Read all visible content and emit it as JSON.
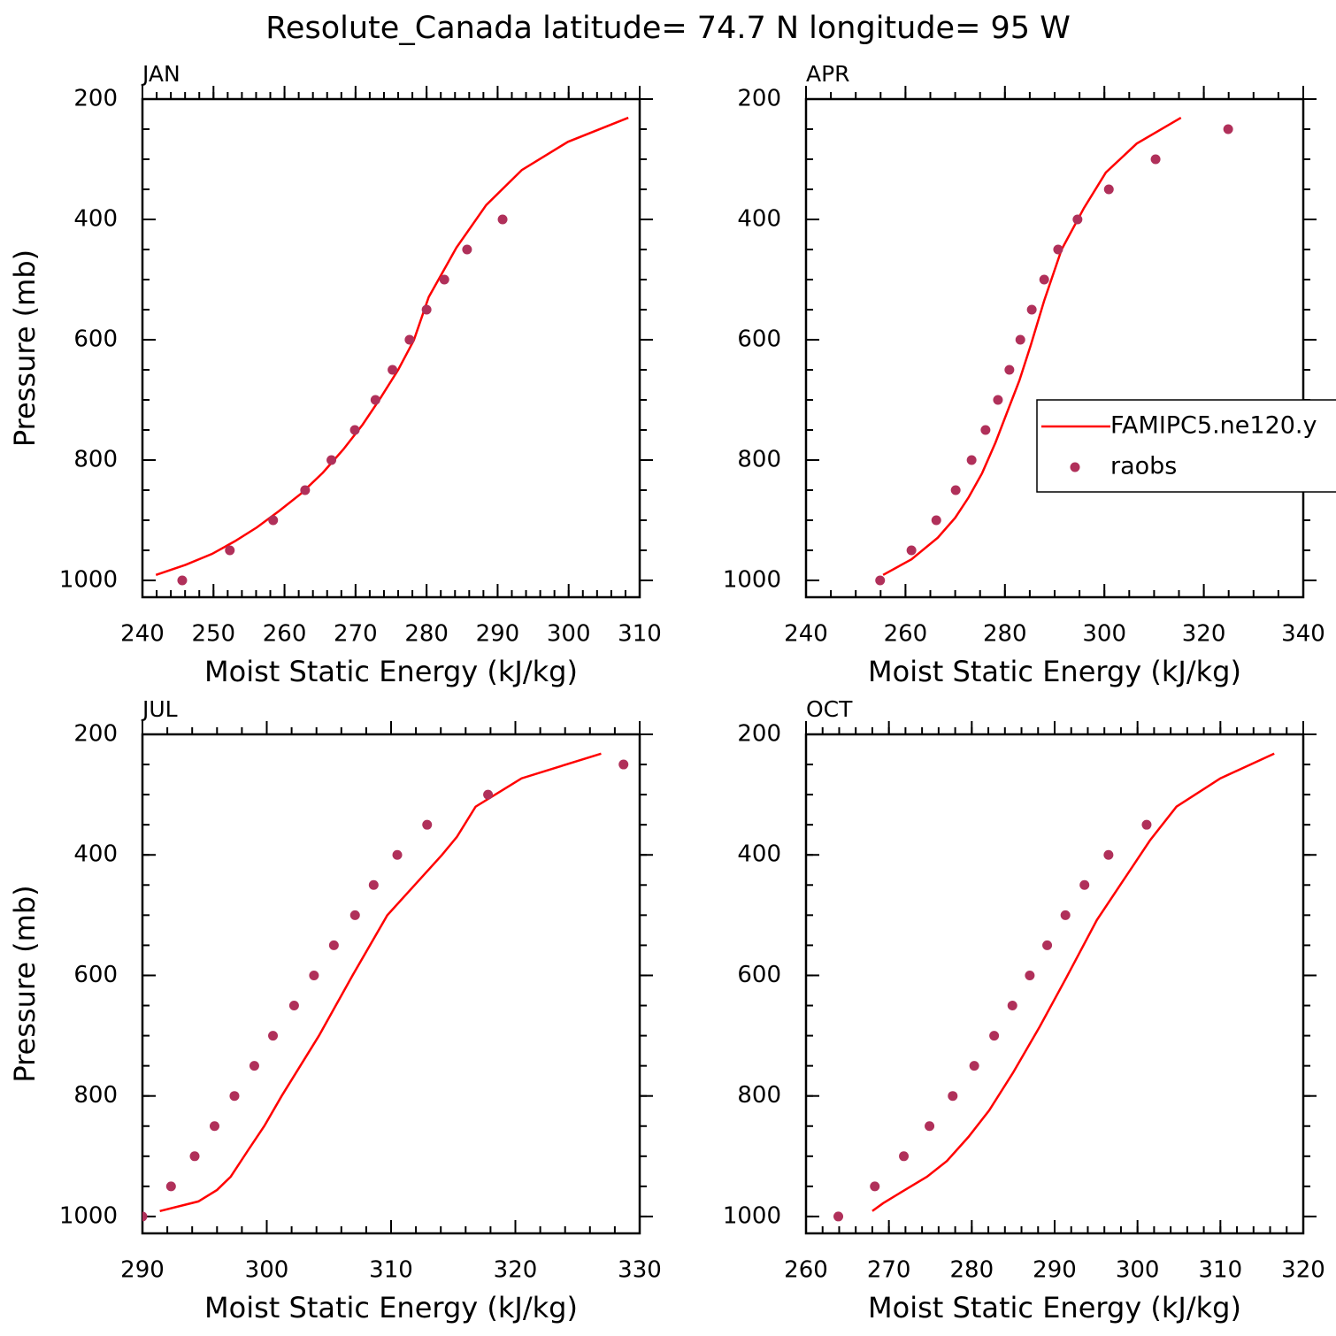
{
  "title": "Resolute_Canada  latitude= 74.7 N longitude= 95 W",
  "chart_data": [
    {
      "type": "line",
      "title": "JAN",
      "xlabel": "Moist Static Energy (kJ/kg)",
      "ylabel": "Pressure (mb)",
      "xlim": [
        240,
        310
      ],
      "xticks": [
        240,
        250,
        260,
        270,
        280,
        290,
        300,
        310
      ],
      "xminor_step": 2,
      "ylim": [
        1028,
        200
      ],
      "yticks": [
        200,
        400,
        600,
        800,
        1000
      ],
      "yminor_step": 50,
      "series": [
        {
          "color": "#ff0000",
          "style": "line",
          "x": [
            241.9,
            246.1,
            249.8,
            253,
            256.1,
            259.2,
            262.3,
            265.4,
            268.3,
            271,
            273.5,
            276,
            278.2,
            280.3,
            284.2,
            288.4,
            293.4,
            299.9,
            308.4
          ],
          "y": [
            991,
            974,
            956,
            935,
            912,
            885,
            856,
            821,
            782,
            741,
            697,
            650,
            601,
            529,
            447,
            376,
            318,
            271,
            231
          ]
        },
        {
          "color": "#b0305a",
          "style": "marker",
          "x": [
            245.6,
            252.3,
            258.4,
            262.9,
            266.6,
            269.9,
            272.8,
            275.2,
            277.6,
            280,
            282.5,
            285.7,
            290.7
          ],
          "y": [
            1000,
            950,
            900,
            850,
            800,
            750,
            700,
            650,
            600,
            550,
            500,
            450,
            400
          ]
        }
      ]
    },
    {
      "type": "line",
      "title": "APR",
      "xlabel": "Moist Static Energy (kJ/kg)",
      "xlim": [
        240,
        340
      ],
      "xticks": [
        240,
        260,
        280,
        300,
        320,
        340
      ],
      "xminor_step": 5,
      "ylim": [
        1028,
        200
      ],
      "yticks": [
        200,
        400,
        600,
        800,
        1000
      ],
      "yminor_step": 50,
      "legend": true,
      "series": [
        {
          "name": "FAMIPC5.ne120.y",
          "color": "#ff0000",
          "style": "line",
          "x": [
            255.5,
            261.2,
            266.5,
            270,
            272.7,
            275.4,
            278.1,
            280.7,
            282.9,
            285.2,
            287.9,
            291.4,
            295.9,
            300.3,
            306.5,
            315.4
          ],
          "y": [
            991,
            965,
            929,
            896,
            862,
            822,
            771,
            715,
            668,
            609,
            535,
            450,
            381,
            322,
            274,
            231
          ]
        },
        {
          "name": "raobs",
          "color": "#b0305a",
          "style": "marker",
          "x": [
            254.9,
            261.2,
            266.2,
            270.1,
            273.3,
            276.1,
            278.6,
            280.9,
            283.1,
            285.4,
            287.9,
            290.7,
            294.6,
            300.9,
            310.3,
            324.9
          ],
          "y": [
            1000,
            950,
            900,
            850,
            800,
            750,
            700,
            650,
            600,
            550,
            500,
            450,
            400,
            350,
            300,
            250
          ]
        }
      ]
    },
    {
      "type": "line",
      "title": "JUL",
      "xlabel": "Moist Static Energy (kJ/kg)",
      "ylabel": "Pressure (mb)",
      "xlim": [
        290,
        330
      ],
      "xticks": [
        290,
        300,
        310,
        320,
        330
      ],
      "xminor_step": 2,
      "ylim": [
        1028,
        200
      ],
      "yticks": [
        200,
        400,
        600,
        800,
        1000
      ],
      "yminor_step": 50,
      "series": [
        {
          "color": "#ff0000",
          "style": "line",
          "x": [
            291.4,
            294.5,
            296,
            297.1,
            298.5,
            299.8,
            301.2,
            304.2,
            306.9,
            309.7,
            311.9,
            314.1,
            315.3,
            316.8,
            320.5,
            326.9
          ],
          "y": [
            991,
            975,
            956,
            934,
            890,
            850,
            800,
            700,
            600,
            500,
            450,
            400,
            370,
            320,
            273,
            232
          ]
        },
        {
          "color": "#b0305a",
          "style": "marker",
          "x": [
            290,
            292.3,
            294.2,
            295.8,
            297.4,
            299,
            300.5,
            302.2,
            303.8,
            305.4,
            307.1,
            308.6,
            310.5,
            312.9,
            317.8,
            328.7
          ],
          "y": [
            1000,
            950,
            900,
            850,
            800,
            750,
            700,
            650,
            600,
            550,
            500,
            450,
            400,
            350,
            300,
            250
          ]
        }
      ]
    },
    {
      "type": "line",
      "title": "OCT",
      "xlabel": "Moist Static Energy (kJ/kg)",
      "xlim": [
        260,
        320
      ],
      "xticks": [
        260,
        270,
        280,
        290,
        300,
        310,
        320
      ],
      "xminor_step": 2,
      "ylim": [
        1028,
        200
      ],
      "yticks": [
        200,
        400,
        600,
        800,
        1000
      ],
      "yminor_step": 50,
      "series": [
        {
          "color": "#ff0000",
          "style": "line",
          "x": [
            268,
            269.3,
            271.8,
            274.6,
            277,
            279.6,
            282.1,
            285,
            288.2,
            291.4,
            295.1,
            298.3,
            301.5,
            304.7,
            310,
            316.5
          ],
          "y": [
            991,
            978,
            957,
            934,
            908,
            868,
            824,
            761,
            685,
            604,
            508,
            442,
            376,
            320,
            273,
            232
          ]
        },
        {
          "color": "#b0305a",
          "style": "marker",
          "x": [
            263.9,
            268.3,
            271.8,
            274.9,
            277.7,
            280.3,
            282.7,
            284.9,
            287,
            289.1,
            291.3,
            293.6,
            296.5,
            301.1
          ],
          "y": [
            1000,
            950,
            900,
            850,
            800,
            750,
            700,
            650,
            600,
            550,
            500,
            450,
            400,
            350
          ]
        }
      ]
    }
  ]
}
